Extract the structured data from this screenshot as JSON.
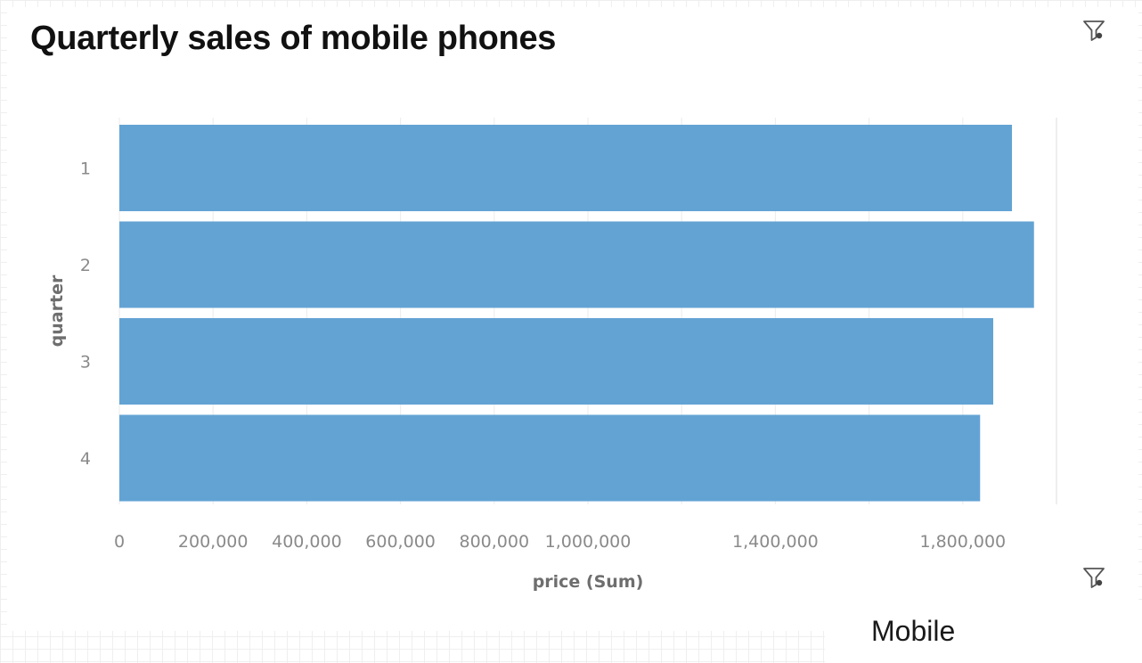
{
  "header": {
    "title": "Quarterly sales of mobile phones"
  },
  "icons": {
    "filter": "filter-icon"
  },
  "footer": {
    "next_card_title": "Mobile"
  },
  "colors": {
    "bar": "#63a3d4",
    "grid": "#eeeeee",
    "tick_text": "#8a8a8a",
    "axis_title": "#6e6e6e"
  },
  "chart_data": {
    "type": "bar",
    "orientation": "horizontal",
    "categories": [
      "1",
      "2",
      "3",
      "4"
    ],
    "values": [
      1905000,
      1952000,
      1865000,
      1837000
    ],
    "xlabel": "price (Sum)",
    "ylabel": "quarter",
    "xlim": [
      0,
      2000000
    ],
    "x_ticks": [
      {
        "value": 0,
        "label": "0"
      },
      {
        "value": 200000,
        "label": "200,000"
      },
      {
        "value": 400000,
        "label": "400,000"
      },
      {
        "value": 600000,
        "label": "600,000"
      },
      {
        "value": 800000,
        "label": "800,000"
      },
      {
        "value": 1000000,
        "label": "1,000,000"
      },
      {
        "value": 1400000,
        "label": "1,400,000"
      },
      {
        "value": 1800000,
        "label": "1,800,000"
      }
    ],
    "grid_values": [
      0,
      200000,
      400000,
      600000,
      800000,
      1000000,
      1200000,
      1400000,
      1600000,
      1800000,
      2000000
    ],
    "grid": true,
    "legend": "none"
  }
}
